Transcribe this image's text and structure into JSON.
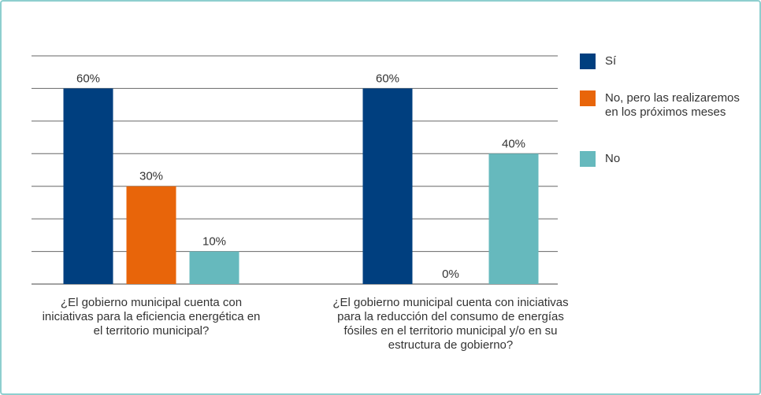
{
  "chart_data": {
    "type": "bar",
    "categories": [
      "¿El gobierno municipal cuenta con iniciativas para la eficiencia energética en el territorio municipal?",
      "¿El gobierno municipal cuenta con iniciativas para la reducción del consumo de energías fósiles en el territorio municipal y/o en su estructura de gobierno?"
    ],
    "series": [
      {
        "name": "Sí",
        "color": "#003f7f",
        "values": [
          60,
          60
        ],
        "value_labels": [
          "60%",
          "60%"
        ]
      },
      {
        "name": "No, pero las realizaremos en los próximos meses",
        "color": "#e8650a",
        "values": [
          30,
          0
        ],
        "value_labels": [
          "30%",
          "0%"
        ]
      },
      {
        "name": "No",
        "color": "#66b9bd",
        "values": [
          10,
          40
        ],
        "value_labels": [
          "10%",
          "40%"
        ]
      }
    ],
    "ylim": [
      0,
      70
    ],
    "yticks": [
      0,
      10,
      20,
      30,
      40,
      50,
      60,
      70
    ],
    "grid": true
  }
}
